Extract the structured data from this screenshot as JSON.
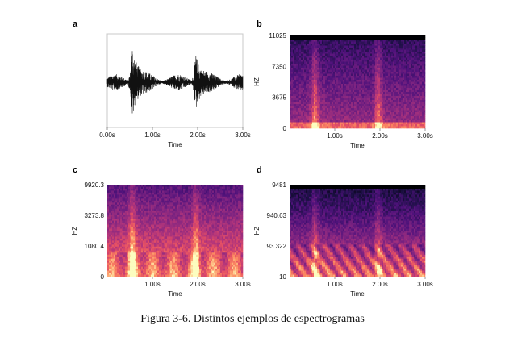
{
  "caption": "Figura 3-6. Distintos ejemplos de espectrogramas",
  "colors": {
    "frame": "#c8c8c8",
    "wave": "#111111",
    "spec_low": "#000004",
    "spec_mid": "#b73779",
    "spec_high": "#fcfdbf"
  },
  "chart_data": [
    {
      "type": "line",
      "panel": "a",
      "xlabel": "Time",
      "ylabel": "",
      "x_ticks": [
        "0.00s",
        "1.00s",
        "2.00s",
        "3.00s"
      ],
      "xlim": [
        0,
        3
      ],
      "y_ticks": [],
      "bursts_s": [
        0.55,
        1.95
      ]
    },
    {
      "type": "heatmap",
      "panel": "b",
      "xlabel": "Time",
      "ylabel": "HZ",
      "x_ticks": [
        "1.00s",
        "2.00s",
        "3.00s"
      ],
      "xlim": [
        0,
        3
      ],
      "y_ticks": [
        "11025",
        "7350",
        "3675",
        "0"
      ],
      "ylim": [
        0,
        11025
      ],
      "y_scale": "linear",
      "bursts_s": [
        0.55,
        1.95
      ]
    },
    {
      "type": "heatmap",
      "panel": "c",
      "xlabel": "Time",
      "ylabel": "HZ",
      "x_ticks": [
        "1.00s",
        "2.00s",
        "3.00s"
      ],
      "xlim": [
        0,
        3
      ],
      "y_ticks": [
        "9920.3",
        "3273.8",
        "1080.4",
        "0"
      ],
      "y_scale": "mel",
      "bursts_s": [
        0.55,
        1.95
      ]
    },
    {
      "type": "heatmap",
      "panel": "d",
      "xlabel": "Time",
      "ylabel": "HZ",
      "x_ticks": [
        "1.00s",
        "2.00s",
        "3.00s"
      ],
      "xlim": [
        0,
        3
      ],
      "y_ticks": [
        "9481",
        "940.63",
        "93.322",
        "10"
      ],
      "y_scale": "log",
      "bursts_s": [
        0.55,
        1.95
      ]
    }
  ]
}
